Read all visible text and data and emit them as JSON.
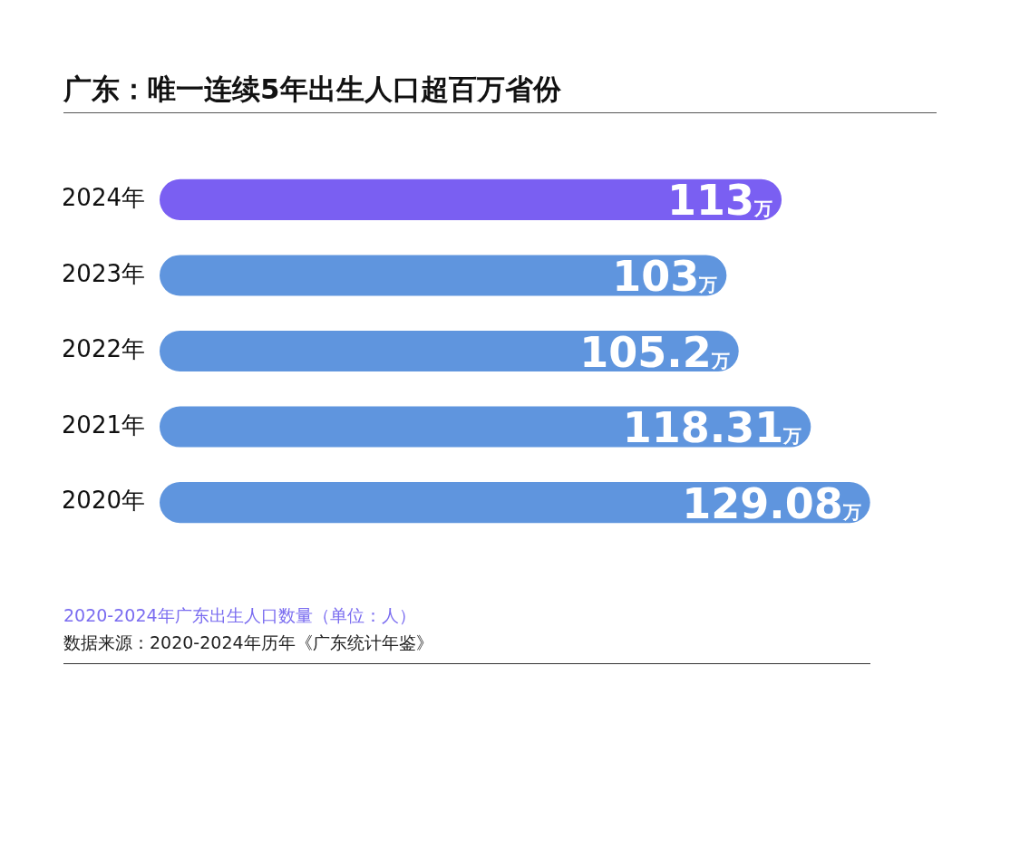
{
  "chart_data": {
    "type": "bar",
    "orientation": "horizontal",
    "title": "广东：唯一连续5年出生人口超百万省份",
    "categories": [
      "2024年",
      "2023年",
      "2022年",
      "2021年",
      "2020年"
    ],
    "values": [
      113,
      103,
      105.2,
      118.31,
      129.08
    ],
    "value_labels": [
      "113万",
      "103万",
      "105.2万",
      "118.31万",
      "129.08万"
    ],
    "colors": [
      "#7a5ff2",
      "#5f95de",
      "#5f95de",
      "#5f95de",
      "#5f95de"
    ],
    "tick_labels": "y",
    "legend": false,
    "annotations": [
      "2020-2024年广东出生人口数量（单位：人）",
      "数据来源：2020-2024年历年《广东统计年鉴》"
    ]
  }
}
